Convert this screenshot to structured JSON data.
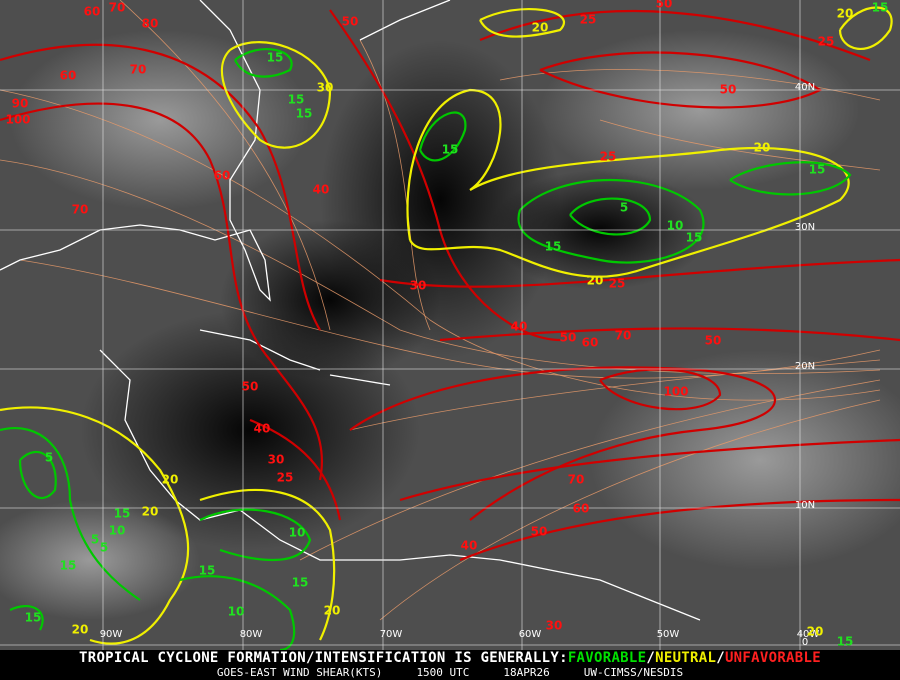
{
  "map": {
    "latitude_labels": [
      "40N",
      "30N",
      "20N",
      "10N",
      "0"
    ],
    "longitude_labels": [
      "90W",
      "80W",
      "70W",
      "60W",
      "50W",
      "40W"
    ],
    "contour_labels": {
      "unfavorable": [
        "60",
        "70",
        "80",
        "50",
        "25",
        "50",
        "25",
        "60",
        "70",
        "90",
        "100",
        "50",
        "60",
        "40",
        "70",
        "25",
        "30",
        "25",
        "40",
        "50",
        "60",
        "70",
        "50",
        "100",
        "50",
        "40",
        "30",
        "25",
        "70",
        "60",
        "50",
        "40",
        "30"
      ],
      "neutral": [
        "20",
        "20",
        "30",
        "20",
        "20",
        "20",
        "20",
        "20",
        "20",
        "20"
      ],
      "favorable": [
        "15",
        "15",
        "15",
        "15",
        "15",
        "15",
        "5",
        "10",
        "15",
        "15",
        "5",
        "15",
        "10",
        "5",
        "5",
        "10",
        "15",
        "15",
        "15",
        "10",
        "15",
        "15"
      ]
    }
  },
  "footer": {
    "message": "TROPICAL CYCLONE FORMATION/INTENSIFICATION IS GENERALLY:",
    "favorable": "FAVORABLE",
    "separator": "/",
    "neutral": "NEUTRAL",
    "unfavorable": "UNFAVORABLE",
    "product": "GOES-EAST WIND SHEAR(KTS)",
    "time": "1500 UTC",
    "date": "18APR26",
    "source": "UW-CIMSS/NESDIS"
  }
}
